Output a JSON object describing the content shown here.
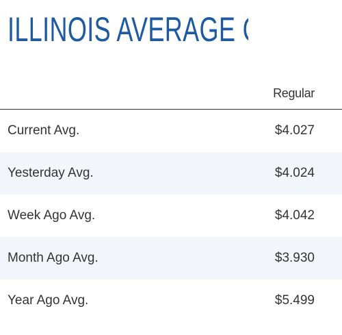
{
  "page": {
    "title": "ILLINOIS AVERAGE GAS PRICES"
  },
  "colors": {
    "title": "#1e5aa0",
    "text": "#333333",
    "alt_row": "#f2f6fa",
    "divider": "#333333"
  },
  "table": {
    "columns": [
      "Regular"
    ],
    "rows": [
      {
        "label": "Current Avg.",
        "regular": "$4.027"
      },
      {
        "label": "Yesterday Avg.",
        "regular": "$4.024"
      },
      {
        "label": "Week Ago Avg.",
        "regular": "$4.042"
      },
      {
        "label": "Month Ago Avg.",
        "regular": "$3.930"
      },
      {
        "label": "Year Ago Avg.",
        "regular": "$5.499"
      }
    ]
  }
}
